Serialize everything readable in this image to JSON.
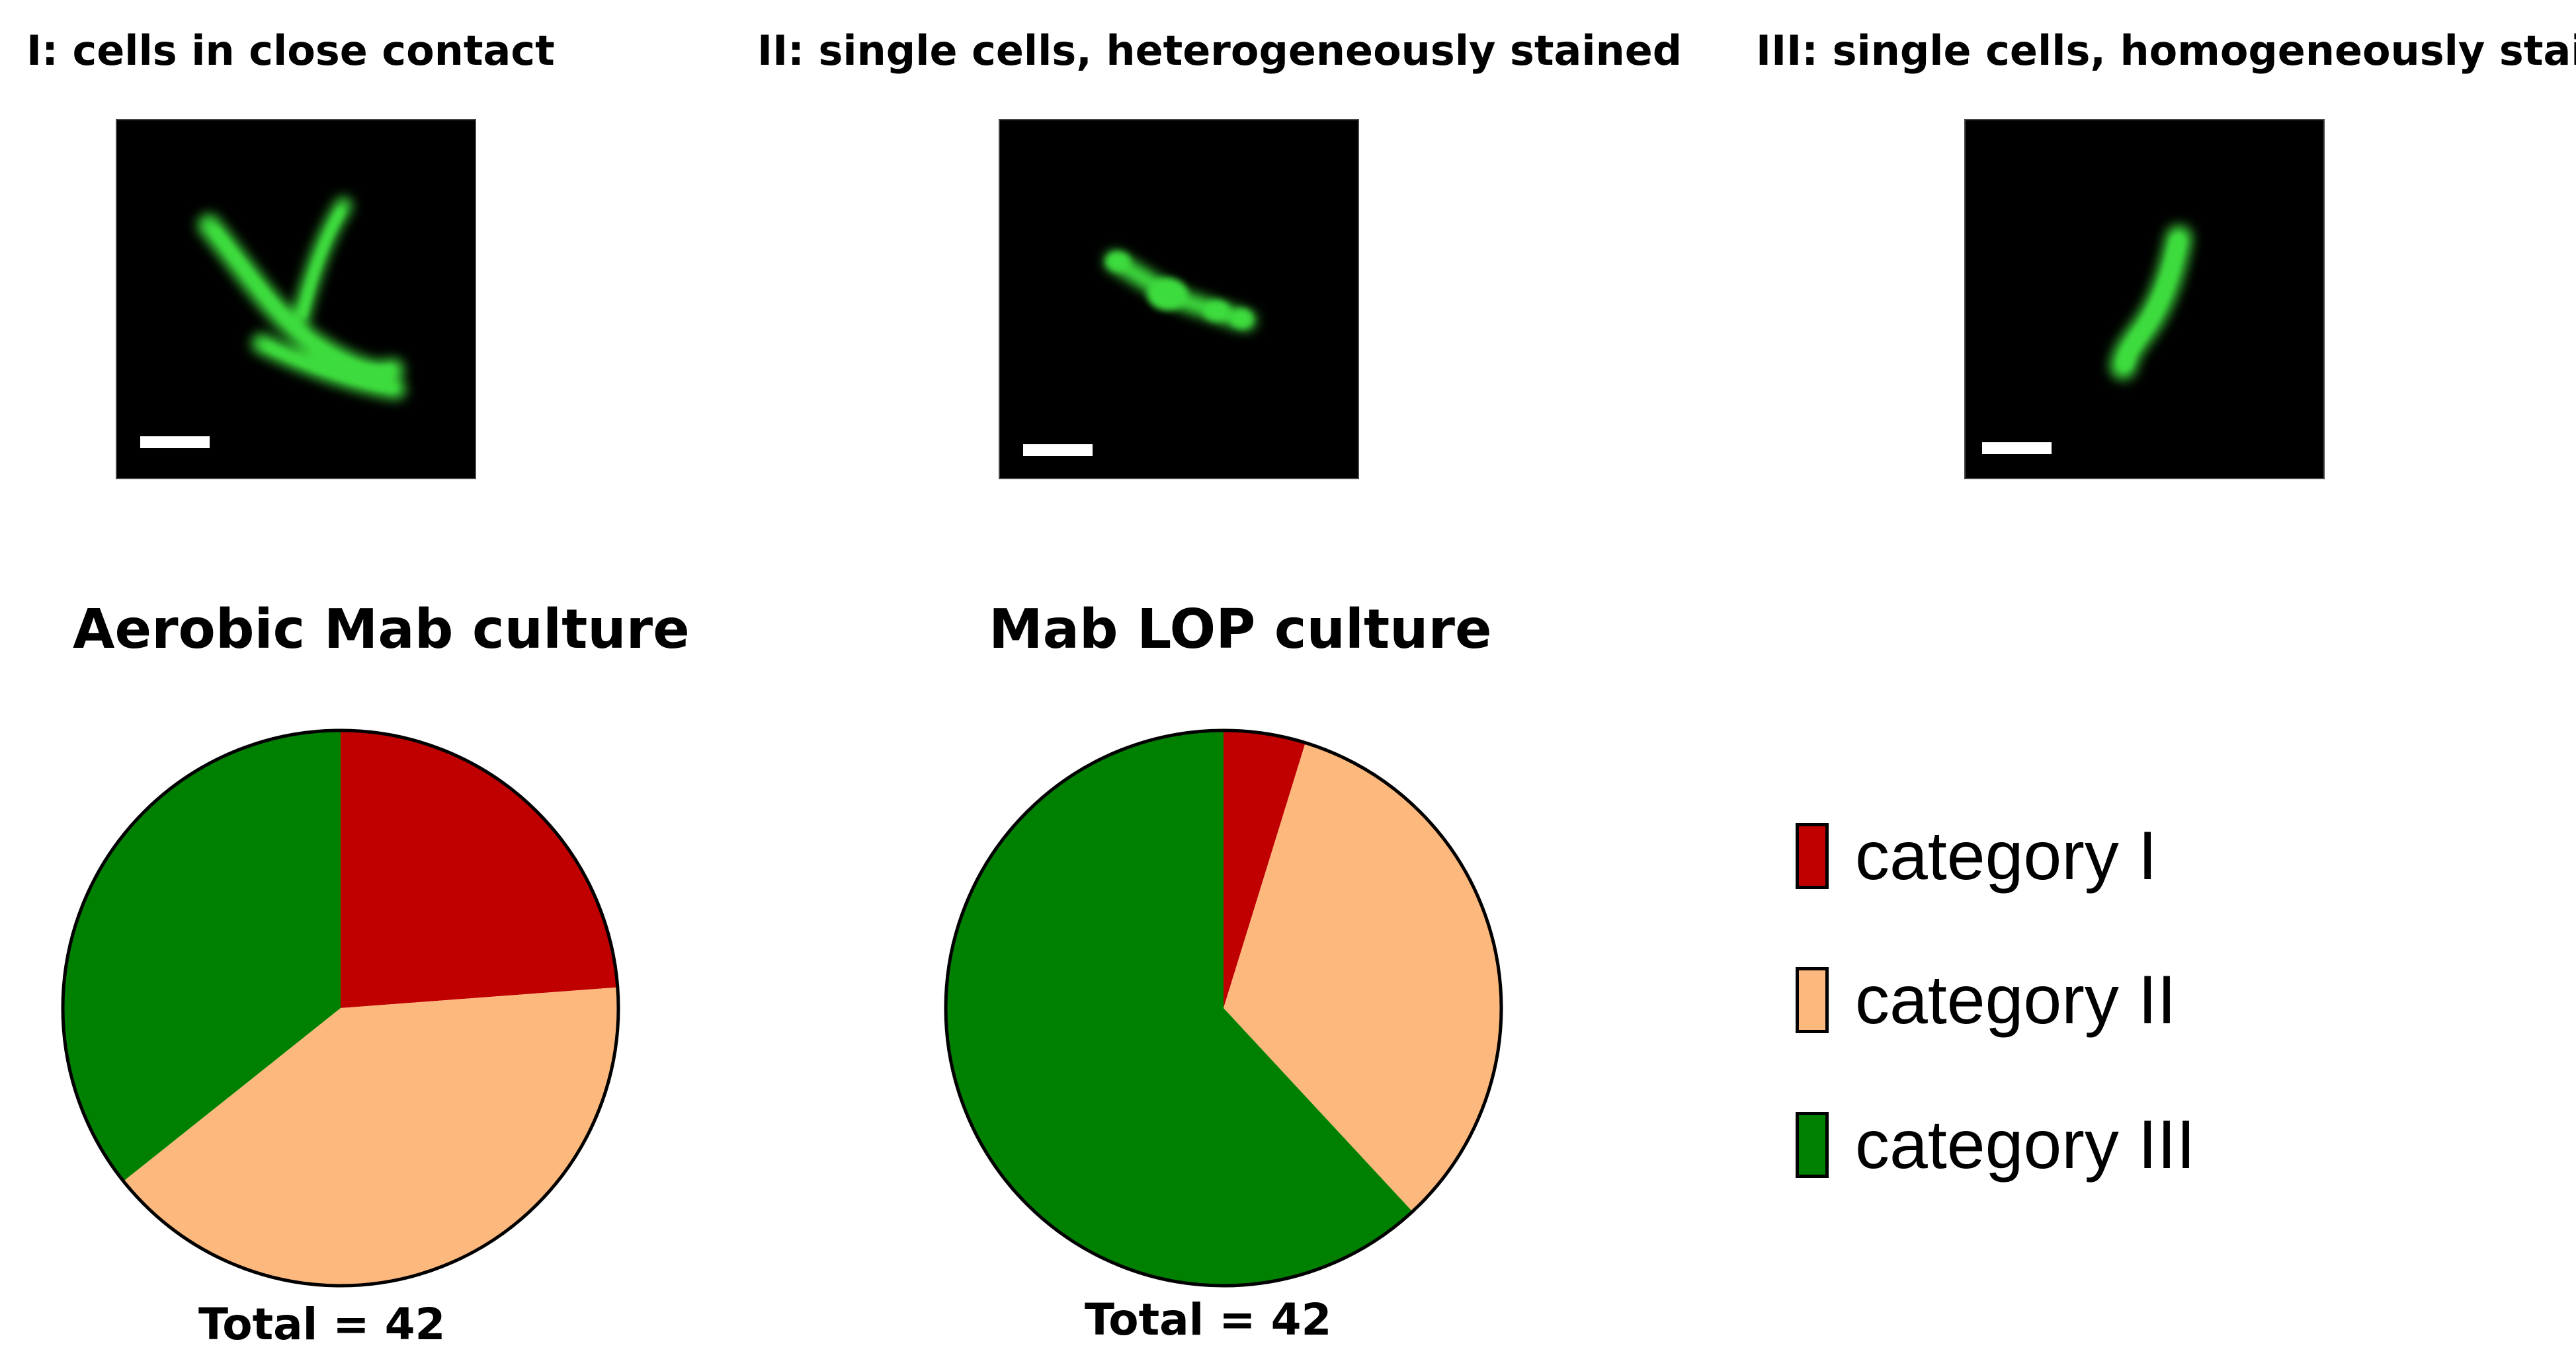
{
  "panels": [
    {
      "label": "I:  cells in close contact"
    },
    {
      "label": "II:  single cells, heterogeneously stained"
    },
    {
      "label": "III:  single cells, homogeneously stained"
    }
  ],
  "colors": {
    "category_I": "#c00000",
    "category_II": "#fdb97d",
    "category_III": "#008000",
    "cell_green": "#3ddc3d"
  },
  "legend": [
    {
      "label": "category I",
      "color_key": "category_I"
    },
    {
      "label": "category II",
      "color_key": "category_II"
    },
    {
      "label": "category III",
      "color_key": "category_III"
    }
  ],
  "chart_data": [
    {
      "type": "pie",
      "title": "Aerobic Mab culture",
      "footer": "Total = 42",
      "total": 42,
      "slices": [
        {
          "name": "category I",
          "value": 10,
          "color_key": "category_I"
        },
        {
          "name": "category II",
          "value": 17,
          "color_key": "category_II"
        },
        {
          "name": "category III",
          "value": 15,
          "color_key": "category_III"
        }
      ],
      "start": "12 o'clock",
      "direction": "clockwise"
    },
    {
      "type": "pie",
      "title": "Mab LOP culture",
      "footer": "Total = 42",
      "total": 42,
      "slices": [
        {
          "name": "category I",
          "value": 2,
          "color_key": "category_I"
        },
        {
          "name": "category II",
          "value": 14,
          "color_key": "category_II"
        },
        {
          "name": "category III",
          "value": 26,
          "color_key": "category_III"
        }
      ],
      "start": "12 o'clock",
      "direction": "clockwise"
    }
  ]
}
